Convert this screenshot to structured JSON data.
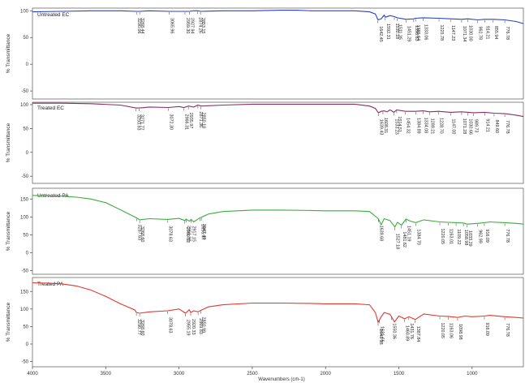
{
  "x_axis": {
    "ticks": [
      4000,
      3500,
      3000,
      2500,
      2000,
      1500,
      1000
    ],
    "label": "Wavenumbers (cm-1)",
    "xlim": [
      4000,
      650
    ]
  },
  "chart_data": [
    {
      "type": "line",
      "panel_label": "Untreated EC",
      "ylabel": "% Transmittance",
      "ylim": [
        -65,
        105
      ],
      "yticks": [
        100,
        50,
        0,
        -50
      ],
      "color": "#2b3fc4",
      "series": [
        {
          "x": [
            4000,
            3800,
            3600,
            3500,
            3400,
            3290,
            3268,
            3200,
            3066,
            3000,
            2959,
            2927,
            2900,
            2874,
            2853,
            2700,
            2500,
            2300,
            2200,
            2100,
            2000,
            1900,
            1800,
            1700,
            1660,
            1642,
            1620,
            1600,
            1592,
            1560,
            1530,
            1511,
            1451,
            1398,
            1385,
            1333,
            1225,
            1147,
            1071,
            1030,
            962,
            914,
            856,
            776,
            700,
            650
          ],
          "y": [
            98,
            99,
            100,
            100,
            100,
            99,
            99,
            100,
            99,
            99,
            99,
            99,
            100,
            100,
            99,
            100,
            100,
            101,
            101,
            100,
            100,
            100,
            100,
            98,
            94,
            83,
            85,
            92,
            88,
            91,
            89,
            87,
            84,
            85,
            86,
            87,
            86,
            85,
            84,
            85,
            83,
            84,
            84,
            83,
            80,
            76
          ]
        }
      ],
      "annotations": [
        "3290.06",
        "3268.44",
        "3065.96",
        "2959.30",
        "2927.94",
        "2874.26",
        "2853.15",
        "1642.45",
        "1592.31",
        "1530.18",
        "1511.35",
        "1451.29",
        "1398.63",
        "1385.64",
        "1333.06",
        "1225.78",
        "1147.23",
        "1071.34",
        "1030.00",
        "962.78",
        "914.21",
        "855.94",
        "776.78"
      ]
    },
    {
      "type": "line",
      "panel_label": "Treated EC",
      "ylabel": "% Transmittance",
      "ylim": [
        -65,
        105
      ],
      "yticks": [
        100,
        50,
        0,
        -50
      ],
      "color": "#8a2f5e",
      "series": [
        {
          "x": [
            4000,
            3800,
            3600,
            3400,
            3294,
            3271,
            3200,
            3072,
            3000,
            2966,
            2935,
            2900,
            2871,
            2850,
            2700,
            2500,
            2300,
            2100,
            2000,
            1900,
            1800,
            1700,
            1660,
            1640,
            1620,
            1600,
            1580,
            1560,
            1533,
            1515,
            1455,
            1385,
            1334,
            1290,
            1229,
            1147,
            1071,
            1030,
            990,
            914,
            849,
            776,
            700,
            650
          ],
          "y": [
            103,
            103,
            102,
            99,
            93,
            93,
            95,
            94,
            96,
            94,
            97,
            95,
            99,
            97,
            99,
            101,
            101,
            101,
            101,
            101,
            101,
            97,
            92,
            83,
            86,
            87,
            85,
            89,
            84,
            89,
            86,
            86,
            87,
            85,
            86,
            84,
            85,
            84,
            83,
            84,
            82,
            81,
            78,
            75
          ]
        }
      ],
      "annotations": [
        "3293.93",
        "3271.77",
        "3072.30",
        "2966.31",
        "2935.97",
        "2871.36",
        "2850.18",
        "1639.43",
        "1608.31",
        "1533.23",
        "1514.51",
        "1454.32",
        "1384.89",
        "1334.08",
        "1289.21",
        "1228.70",
        "1147.00",
        "1071.28",
        "1030.66",
        "989.73",
        "914.21",
        "849.60",
        "776.78"
      ]
    },
    {
      "type": "line",
      "panel_label": "Untreated PA",
      "ylabel": "% Transmittance",
      "ylim": [
        -60,
        180
      ],
      "yticks": [
        150,
        100,
        50,
        0,
        -50
      ],
      "color": "#3aad3f",
      "series": [
        {
          "x": [
            4000,
            3900,
            3800,
            3700,
            3600,
            3500,
            3400,
            3287,
            3269,
            3200,
            3078,
            3000,
            2960,
            2952,
            2930,
            2917,
            2900,
            2856,
            2847,
            2800,
            2700,
            2500,
            2300,
            2100,
            2000,
            1900,
            1800,
            1700,
            1640,
            1620,
            1600,
            1560,
            1527,
            1510,
            1481,
            1451,
            1420,
            1385,
            1330,
            1220,
            1163,
            1109,
            1059,
            1033,
            963,
            916,
            880,
            776,
            700,
            650
          ],
          "y": [
            160,
            159,
            158,
            155,
            150,
            140,
            120,
            97,
            92,
            95,
            93,
            96,
            90,
            94,
            88,
            93,
            86,
            98,
            99,
            108,
            115,
            119,
            119,
            118,
            117,
            117,
            117,
            115,
            95,
            78,
            95,
            90,
            72,
            85,
            77,
            94,
            88,
            84,
            92,
            86,
            85,
            84,
            83,
            80,
            82,
            84,
            86,
            84,
            82,
            80
          ]
        }
      ],
      "annotations": [
        "3287.63",
        "3268.60",
        "3078.63",
        "2960.12",
        "2951.98",
        "2917.15",
        "2856.47",
        "2847.49",
        "1639.68",
        "1527.18",
        "1481.62",
        "1451.19",
        "1384.70",
        "1220.05",
        "1163.01",
        "1109.22",
        "1058.98",
        "1033.29",
        "962.99",
        "916.09",
        "776.78"
      ]
    },
    {
      "type": "line",
      "panel_label": "Treated PA",
      "ylabel": "% Transmittance",
      "ylim": [
        -65,
        190
      ],
      "yticks": [
        150,
        100,
        50,
        0,
        -50
      ],
      "color": "#e0382f",
      "series": [
        {
          "x": [
            4000,
            3900,
            3800,
            3700,
            3600,
            3500,
            3400,
            3300,
            3291,
            3269,
            3200,
            3079,
            3000,
            2955,
            2930,
            2920,
            2900,
            2870,
            2851,
            2800,
            2700,
            2500,
            2300,
            2100,
            2000,
            1900,
            1800,
            1700,
            1660,
            1641,
            1620,
            1600,
            1560,
            1530,
            1500,
            1460,
            1431,
            1388,
            1330,
            1220,
            1163,
            1099,
            1050,
            1000,
            916,
            880,
            777,
            700,
            650
          ],
          "y": [
            175,
            174,
            172,
            166,
            154,
            136,
            115,
            97,
            90,
            88,
            92,
            95,
            100,
            88,
            98,
            90,
            95,
            92,
            96,
            106,
            112,
            117,
            117,
            116,
            115,
            115,
            115,
            112,
            90,
            62,
            78,
            90,
            85,
            63,
            80,
            72,
            78,
            70,
            86,
            80,
            79,
            76,
            80,
            78,
            80,
            82,
            78,
            76,
            74
          ]
        }
      ],
      "annotations": [
        "3290.77",
        "3268.60",
        "3078.63",
        "2955.19",
        "2920.33",
        "2869.83",
        "2850.99",
        "1641.18",
        "1631.66",
        "1550.36",
        "1460.89",
        "1431.76",
        "1387.84",
        "1220.05",
        "1163.06",
        "1098.98",
        "916.09",
        "776.78"
      ]
    }
  ]
}
